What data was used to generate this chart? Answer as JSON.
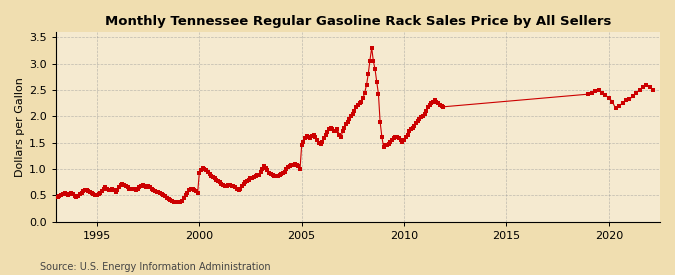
{
  "title": "Monthly Tennessee Regular Gasoline Rack Sales Price by All Sellers",
  "ylabel": "Dollars per Gallon",
  "source": "Source: U.S. Energy Information Administration",
  "background_color": "#f0deb0",
  "plot_bg_color": "#f5ead0",
  "marker_color": "#cc0000",
  "line_color": "#cc0000",
  "xlim": [
    1993.0,
    2022.5
  ],
  "ylim": [
    0.0,
    3.6
  ],
  "xticks": [
    1995,
    2000,
    2005,
    2010,
    2015,
    2020
  ],
  "yticks": [
    0.0,
    0.5,
    1.0,
    1.5,
    2.0,
    2.5,
    3.0,
    3.5
  ],
  "data": {
    "dates": [
      1993.08,
      1993.17,
      1993.25,
      1993.33,
      1993.42,
      1993.5,
      1993.58,
      1993.67,
      1993.75,
      1993.83,
      1993.92,
      1994.0,
      1994.08,
      1994.17,
      1994.25,
      1994.33,
      1994.42,
      1994.5,
      1994.58,
      1994.67,
      1994.75,
      1994.83,
      1994.92,
      1995.0,
      1995.08,
      1995.17,
      1995.25,
      1995.33,
      1995.42,
      1995.5,
      1995.58,
      1995.67,
      1995.75,
      1995.83,
      1995.92,
      1996.0,
      1996.08,
      1996.17,
      1996.25,
      1996.33,
      1996.42,
      1996.5,
      1996.58,
      1996.67,
      1996.75,
      1996.83,
      1996.92,
      1997.0,
      1997.08,
      1997.17,
      1997.25,
      1997.33,
      1997.42,
      1997.5,
      1997.58,
      1997.67,
      1997.75,
      1997.83,
      1997.92,
      1998.0,
      1998.08,
      1998.17,
      1998.25,
      1998.33,
      1998.42,
      1998.5,
      1998.58,
      1998.67,
      1998.75,
      1998.83,
      1998.92,
      1999.0,
      1999.08,
      1999.17,
      1999.25,
      1999.33,
      1999.42,
      1999.5,
      1999.58,
      1999.67,
      1999.75,
      1999.83,
      1999.92,
      2000.0,
      2000.08,
      2000.17,
      2000.25,
      2000.33,
      2000.42,
      2000.5,
      2000.58,
      2000.67,
      2000.75,
      2000.83,
      2000.92,
      2001.0,
      2001.08,
      2001.17,
      2001.25,
      2001.33,
      2001.42,
      2001.5,
      2001.58,
      2001.67,
      2001.75,
      2001.83,
      2001.92,
      2002.0,
      2002.08,
      2002.17,
      2002.25,
      2002.33,
      2002.42,
      2002.5,
      2002.58,
      2002.67,
      2002.75,
      2002.83,
      2002.92,
      2003.0,
      2003.08,
      2003.17,
      2003.25,
      2003.33,
      2003.42,
      2003.5,
      2003.58,
      2003.67,
      2003.75,
      2003.83,
      2003.92,
      2004.0,
      2004.08,
      2004.17,
      2004.25,
      2004.33,
      2004.42,
      2004.5,
      2004.58,
      2004.67,
      2004.75,
      2004.83,
      2004.92,
      2005.0,
      2005.08,
      2005.17,
      2005.25,
      2005.33,
      2005.42,
      2005.5,
      2005.58,
      2005.67,
      2005.75,
      2005.83,
      2005.92,
      2006.0,
      2006.08,
      2006.17,
      2006.25,
      2006.33,
      2006.42,
      2006.5,
      2006.58,
      2006.67,
      2006.75,
      2006.83,
      2006.92,
      2007.0,
      2007.08,
      2007.17,
      2007.25,
      2007.33,
      2007.42,
      2007.5,
      2007.58,
      2007.67,
      2007.75,
      2007.83,
      2007.92,
      2008.0,
      2008.08,
      2008.17,
      2008.25,
      2008.33,
      2008.42,
      2008.5,
      2008.58,
      2008.67,
      2008.75,
      2008.83,
      2008.92,
      2009.0,
      2009.08,
      2009.17,
      2009.25,
      2009.33,
      2009.42,
      2009.5,
      2009.58,
      2009.67,
      2009.75,
      2009.83,
      2009.92,
      2010.0,
      2010.08,
      2010.17,
      2010.25,
      2010.33,
      2010.42,
      2010.5,
      2010.58,
      2010.67,
      2010.75,
      2010.83,
      2010.92,
      2011.0,
      2011.08,
      2011.17,
      2011.25,
      2011.33,
      2011.42,
      2011.5,
      2011.58,
      2011.67,
      2011.75,
      2011.83,
      2011.92,
      2019.0,
      2019.17,
      2019.33,
      2019.5,
      2019.67,
      2019.83,
      2020.0,
      2020.17,
      2020.33,
      2020.5,
      2020.67,
      2020.83,
      2021.0,
      2021.17,
      2021.33,
      2021.5,
      2021.67,
      2021.83,
      2022.0,
      2022.17
    ],
    "values": [
      0.46,
      0.48,
      0.5,
      0.52,
      0.54,
      0.52,
      0.5,
      0.53,
      0.55,
      0.52,
      0.48,
      0.47,
      0.49,
      0.52,
      0.55,
      0.58,
      0.6,
      0.6,
      0.58,
      0.57,
      0.55,
      0.52,
      0.5,
      0.5,
      0.52,
      0.54,
      0.58,
      0.62,
      0.65,
      0.63,
      0.6,
      0.6,
      0.62,
      0.6,
      0.57,
      0.6,
      0.65,
      0.7,
      0.72,
      0.7,
      0.68,
      0.65,
      0.63,
      0.62,
      0.62,
      0.62,
      0.6,
      0.62,
      0.65,
      0.68,
      0.7,
      0.68,
      0.65,
      0.67,
      0.65,
      0.62,
      0.6,
      0.58,
      0.57,
      0.56,
      0.54,
      0.52,
      0.5,
      0.48,
      0.45,
      0.43,
      0.42,
      0.4,
      0.38,
      0.38,
      0.38,
      0.37,
      0.38,
      0.4,
      0.45,
      0.5,
      0.55,
      0.6,
      0.62,
      0.62,
      0.6,
      0.58,
      0.55,
      0.92,
      0.98,
      1.02,
      1.0,
      0.98,
      0.95,
      0.9,
      0.87,
      0.85,
      0.83,
      0.8,
      0.78,
      0.75,
      0.72,
      0.7,
      0.68,
      0.68,
      0.7,
      0.7,
      0.68,
      0.68,
      0.65,
      0.62,
      0.6,
      0.62,
      0.68,
      0.72,
      0.75,
      0.78,
      0.8,
      0.82,
      0.83,
      0.85,
      0.87,
      0.88,
      0.88,
      0.95,
      1.0,
      1.05,
      1.02,
      0.98,
      0.92,
      0.9,
      0.88,
      0.86,
      0.86,
      0.87,
      0.88,
      0.9,
      0.92,
      0.95,
      1.0,
      1.03,
      1.05,
      1.07,
      1.08,
      1.1,
      1.08,
      1.05,
      1.0,
      1.45,
      1.52,
      1.58,
      1.62,
      1.6,
      1.58,
      1.62,
      1.65,
      1.6,
      1.55,
      1.5,
      1.48,
      1.52,
      1.58,
      1.65,
      1.7,
      1.75,
      1.78,
      1.75,
      1.72,
      1.72,
      1.75,
      1.65,
      1.6,
      1.72,
      1.78,
      1.85,
      1.9,
      1.95,
      2.0,
      2.05,
      2.1,
      2.18,
      2.22,
      2.25,
      2.28,
      2.35,
      2.45,
      2.6,
      2.8,
      3.05,
      3.3,
      3.05,
      2.9,
      2.65,
      2.42,
      1.9,
      1.6,
      1.42,
      1.45,
      1.45,
      1.48,
      1.52,
      1.55,
      1.58,
      1.6,
      1.6,
      1.58,
      1.55,
      1.52,
      1.55,
      1.6,
      1.65,
      1.72,
      1.75,
      1.78,
      1.82,
      1.88,
      1.92,
      1.95,
      1.98,
      2.0,
      2.05,
      2.1,
      2.18,
      2.22,
      2.25,
      2.28,
      2.3,
      2.28,
      2.25,
      2.22,
      2.2,
      2.18,
      2.42,
      2.45,
      2.48,
      2.5,
      2.45,
      2.4,
      2.35,
      2.28,
      2.15,
      2.2,
      2.25,
      2.3,
      2.32,
      2.38,
      2.45,
      2.5,
      2.55,
      2.6,
      2.55,
      2.5
    ]
  }
}
